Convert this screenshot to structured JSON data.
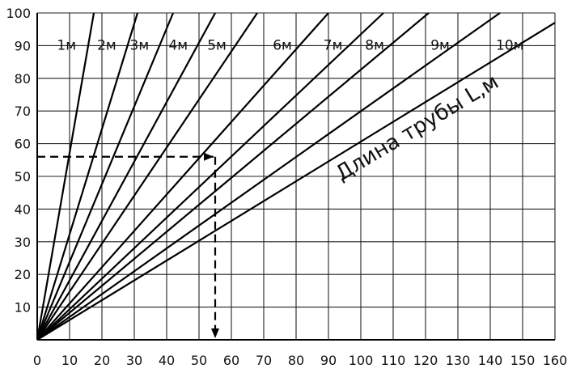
{
  "chart_data": {
    "type": "line",
    "xlim": [
      0,
      160
    ],
    "ylim": [
      0,
      100
    ],
    "x_ticks": [
      "0",
      "10",
      "20",
      "30",
      "40",
      "50",
      "60",
      "70",
      "80",
      "90",
      "100",
      "110",
      "120",
      "130",
      "140",
      "150",
      "160"
    ],
    "y_ticks": [
      "10",
      "20",
      "30",
      "40",
      "50",
      "60",
      "70",
      "80",
      "90",
      "100"
    ],
    "grid": true,
    "series": [
      {
        "name": "1м",
        "x": [
          0,
          17.5
        ],
        "y": [
          0,
          100
        ]
      },
      {
        "name": "2м",
        "x": [
          0,
          31
        ],
        "y": [
          0,
          100
        ]
      },
      {
        "name": "3м",
        "x": [
          0,
          42
        ],
        "y": [
          0,
          100
        ]
      },
      {
        "name": "4м",
        "x": [
          0,
          55
        ],
        "y": [
          0,
          100
        ]
      },
      {
        "name": "5м",
        "x": [
          0,
          68
        ],
        "y": [
          0,
          100
        ]
      },
      {
        "name": "6м",
        "x": [
          0,
          90
        ],
        "y": [
          0,
          100
        ]
      },
      {
        "name": "7м",
        "x": [
          0,
          107
        ],
        "y": [
          0,
          100
        ]
      },
      {
        "name": "8м",
        "x": [
          0,
          121
        ],
        "y": [
          0,
          100
        ]
      },
      {
        "name": "9м",
        "x": [
          0,
          143
        ],
        "y": [
          0,
          100
        ]
      },
      {
        "name": "10м",
        "x": [
          0,
          160
        ],
        "y": [
          0,
          97
        ]
      }
    ],
    "annotation": "Длина трубы L,м",
    "example": {
      "from_y": 56,
      "at_x": 55,
      "to_x": 55
    }
  }
}
